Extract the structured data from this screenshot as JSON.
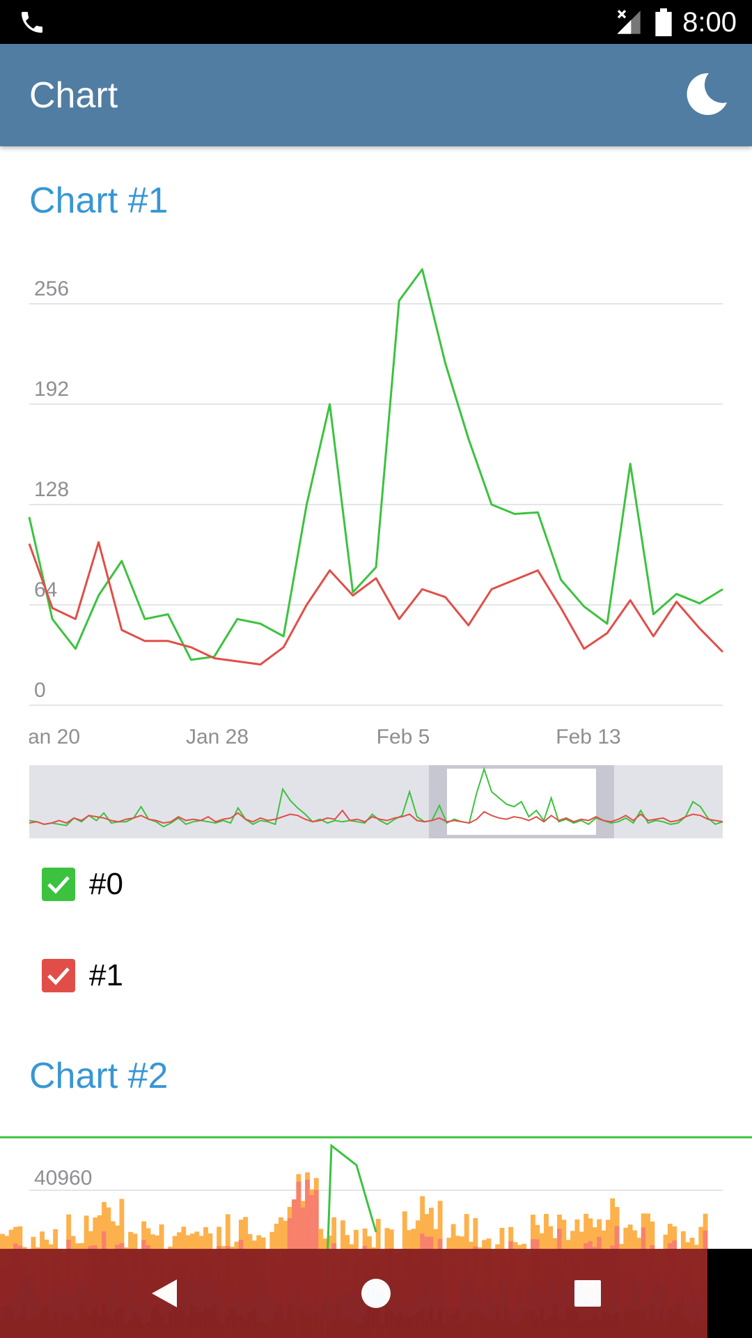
{
  "status_bar": {
    "time": "8:00"
  },
  "app_bar": {
    "title": "Chart",
    "night_mode_icon": "moon-icon"
  },
  "chart1": {
    "title": "Chart #1",
    "chart_data": {
      "type": "line",
      "x_labels": [
        "Jan 20",
        "Jan 28",
        "Feb 5",
        "Feb 13"
      ],
      "y_ticks": [
        "0",
        "64",
        "128",
        "192",
        "256"
      ],
      "ylim": [
        0,
        290
      ],
      "grid": true,
      "series": [
        {
          "name": "#0",
          "color": "#3CC23F",
          "values": [
            120,
            55,
            36,
            70,
            92,
            55,
            58,
            29,
            31,
            55,
            52,
            44,
            128,
            192,
            72,
            88,
            258,
            278,
            218,
            170,
            128,
            122,
            123,
            80,
            63,
            52,
            154,
            58,
            71,
            65,
            74
          ]
        },
        {
          "name": "#1",
          "color": "#E14E48",
          "values": [
            103,
            62,
            55,
            104,
            48,
            41,
            41,
            37,
            30,
            28,
            26,
            37,
            64,
            86,
            70,
            81,
            55,
            74,
            69,
            51,
            74,
            80,
            86,
            62,
            36,
            46,
            67,
            44,
            66,
            49,
            34
          ]
        }
      ]
    },
    "legend": [
      {
        "label": "#0",
        "color": "#3CC23F",
        "checked": true
      },
      {
        "label": "#1",
        "color": "#E14E48",
        "checked": true
      }
    ]
  },
  "chart2": {
    "title": "Chart #2",
    "chart_data": {
      "type": "bar",
      "y_ticks": [
        "40960"
      ],
      "series_colors": [
        "#FCB14C",
        "#F7816C",
        "#3B89C4",
        "#1F5C35",
        "#3CC23F"
      ]
    }
  }
}
